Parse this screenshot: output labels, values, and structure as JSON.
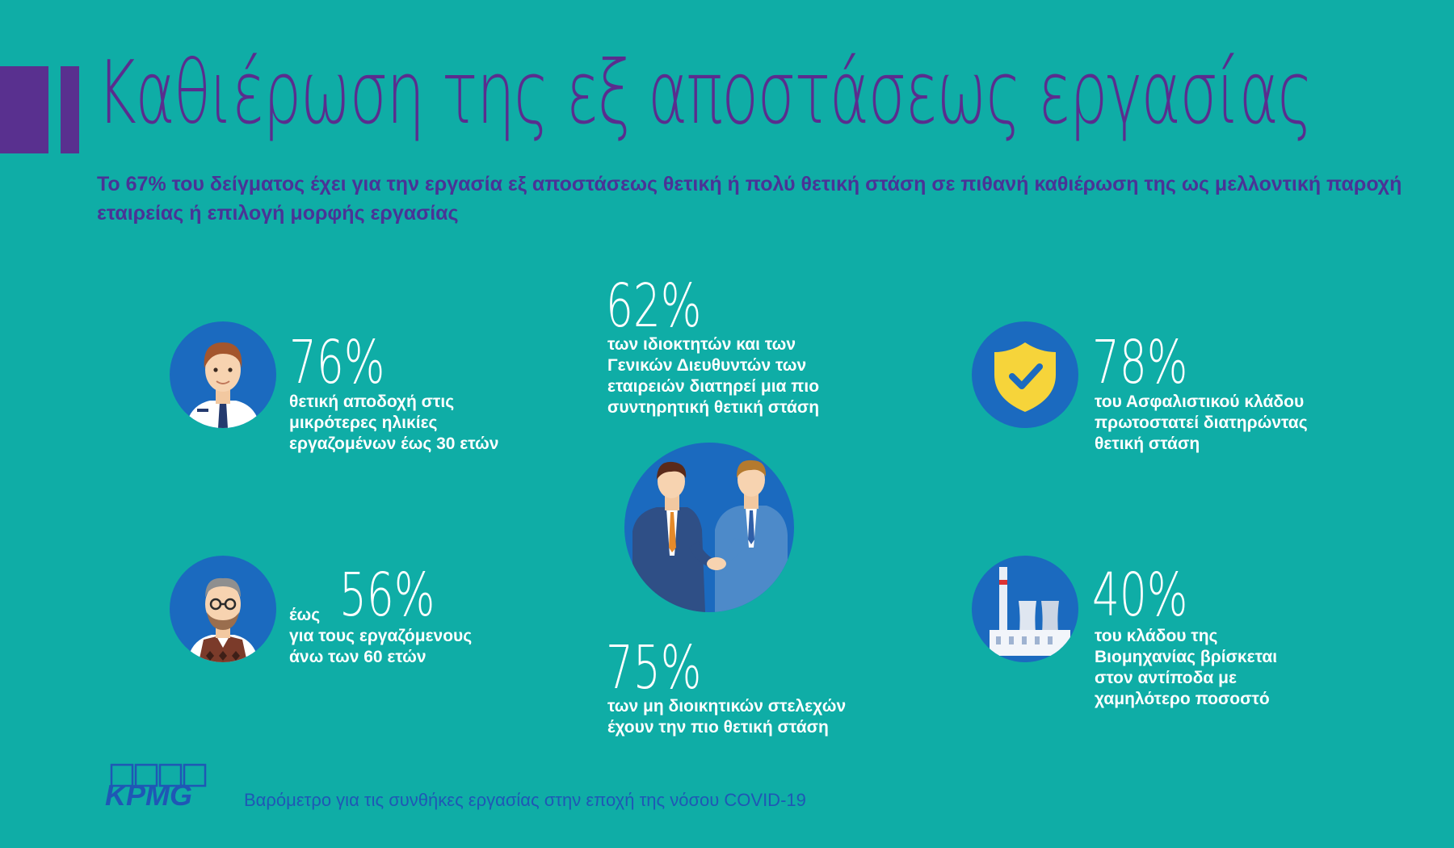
{
  "header": {
    "title": "Καθιέρωση της εξ αποστάσεως εργασίας",
    "subtitle": "Το 67% του δείγματος έχει για την εργασία εξ αποστάσεως θετική ή πολύ θετική στάση σε πιθανή καθιέρωση της ως μελλοντική παροχή εταιρείας ή επιλογή μορφής εργασίας"
  },
  "stats": {
    "young": {
      "pct": "76%",
      "desc": [
        "θετική αποδοχή στις",
        "μικρότερες ηλικίες",
        "εργαζομένων έως 30 ετών"
      ],
      "icon": "young-man-icon"
    },
    "senior": {
      "prefix": "έως",
      "pct": "56%",
      "desc": [
        "για τους εργαζόμενους",
        "άνω των 60 ετών"
      ],
      "icon": "senior-man-icon"
    },
    "owners": {
      "pct": "62%",
      "desc": [
        "των ιδιοκτητών και των",
        "Γενικών Διευθυντών των",
        "εταιρειών διατηρεί μια πιο",
        "συντηρητική θετική στάση"
      ]
    },
    "handshake_icon": "handshake-icon",
    "non_managers": {
      "pct": "75%",
      "desc": [
        "των μη διοικητικών στελεχών",
        "έχουν την πιο θετική στάση"
      ]
    },
    "insurance": {
      "pct": "78%",
      "desc": [
        "του Ασφαλιστικού κλάδου",
        "πρωτοστατεί διατηρώντας",
        "θετική στάση"
      ],
      "icon": "shield-check-icon"
    },
    "industry": {
      "pct": "40%",
      "desc": [
        "του κλάδου της",
        "Βιομηχανίας βρίσκεται",
        "στον αντίποδα με",
        "χαμηλότερο ποσοστό"
      ],
      "icon": "factory-icon"
    }
  },
  "footer": {
    "logo_text": "KPMG",
    "caption": "Βαρόμετρο για τις συνθήκες εργασίας στην εποχή της νόσου COVID-19"
  },
  "colors": {
    "background": "#0fada6",
    "title": "#5a2d8e",
    "circle": "#1b6abf",
    "footer_text": "#1f57b5"
  }
}
